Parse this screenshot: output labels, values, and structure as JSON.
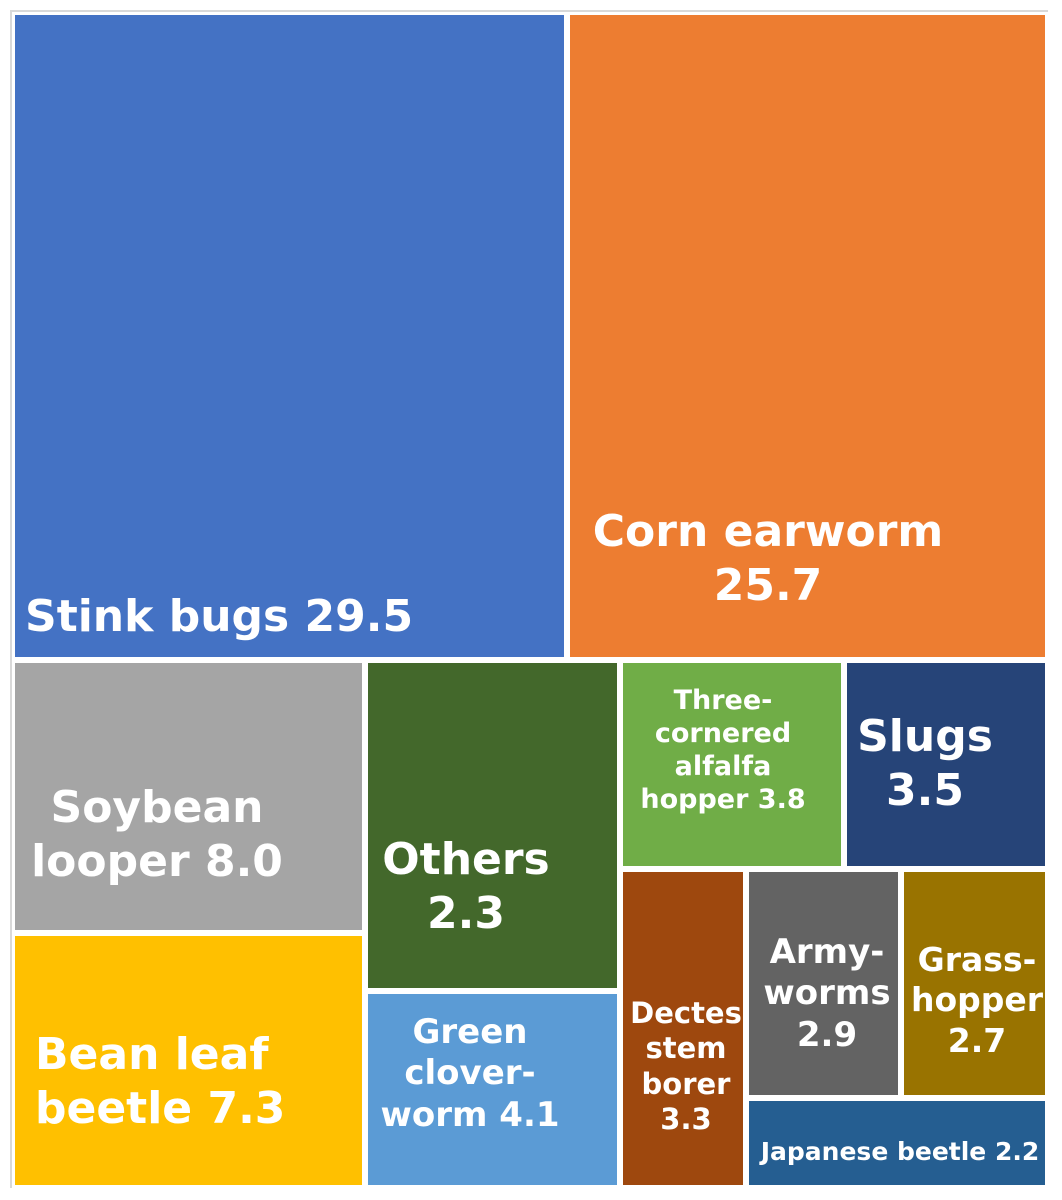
{
  "chart_data": {
    "type": "treemap",
    "units": "",
    "items": [
      {
        "key": "stink_bugs",
        "label": "Stink bugs 29.5",
        "name": "Stink bugs",
        "value": 29.5,
        "color": "#4472C4"
      },
      {
        "key": "corn_earworm",
        "label": "Corn earworm\n25.7",
        "name": "Corn earworm",
        "value": 25.7,
        "color": "#ED7D31"
      },
      {
        "key": "soybean_looper",
        "label": "Soybean\nlooper 8.0",
        "name": "Soybean looper",
        "value": 8.0,
        "color": "#A5A5A5"
      },
      {
        "key": "bean_leaf_beetle",
        "label": "Bean leaf\nbeetle 7.3",
        "name": "Bean leaf beetle",
        "value": 7.3,
        "color": "#FFC000"
      },
      {
        "key": "green_cloverworm",
        "label": "Green\nclover-\nworm 4.1",
        "name": "Green cloverworm",
        "value": 4.1,
        "color": "#5B9BD5"
      },
      {
        "key": "three_cornered_alfalfa_hopper",
        "label": "Three-\ncornered\nalfalfa\nhopper 3.8",
        "name": "Three-cornered alfalfa hopper",
        "value": 3.8,
        "color": "#70AD47"
      },
      {
        "key": "slugs",
        "label": "Slugs\n3.5",
        "name": "Slugs",
        "value": 3.5,
        "color": "#264478"
      },
      {
        "key": "dectes_stem_borer",
        "label": "Dectes\nstem\nborer\n3.3",
        "name": "Dectes stem borer",
        "value": 3.3,
        "color": "#9E480E"
      },
      {
        "key": "armyworms",
        "label": "Army-\nworms\n2.9",
        "name": "Armyworms",
        "value": 2.9,
        "color": "#636363"
      },
      {
        "key": "grasshopper",
        "label": "Grass-\nhopper\n2.7",
        "name": "Grasshopper",
        "value": 2.7,
        "color": "#997300"
      },
      {
        "key": "others",
        "label": "Others\n2.3",
        "name": "Others",
        "value": 2.3,
        "color": "#43682B"
      },
      {
        "key": "japanese_beetle",
        "label": "Japanese beetle 2.2",
        "name": "Japanese beetle",
        "value": 2.2,
        "color": "#255E91"
      }
    ]
  }
}
